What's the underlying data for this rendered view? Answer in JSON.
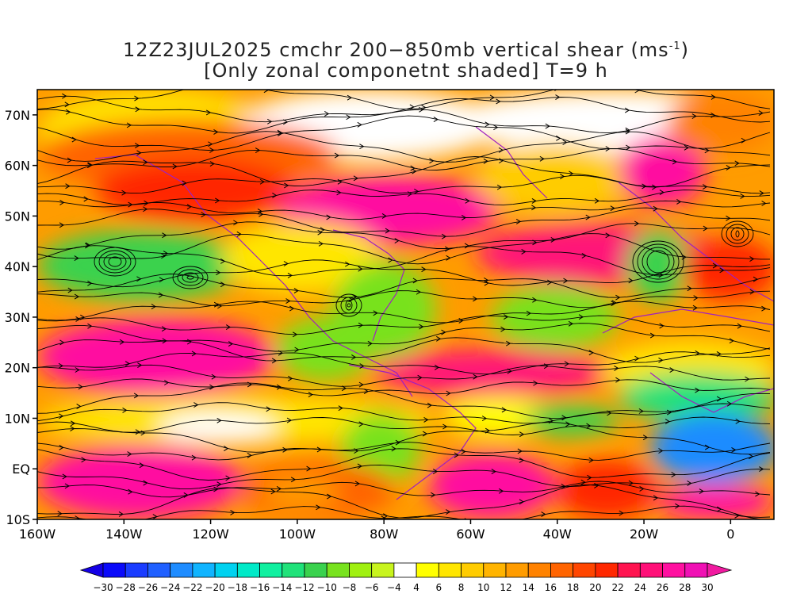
{
  "title": {
    "line1_prefix": "12Z23JUL2025 cmchr 200−850mb vertical shear (ms",
    "line1_sup": "-1",
    "line1_suffix": ")",
    "line2": "[Only zonal componetnt shaded] T=9 h"
  },
  "map": {
    "lat_ticks": [
      "70N",
      "60N",
      "50N",
      "40N",
      "30N",
      "20N",
      "10N",
      "EQ",
      "10S"
    ],
    "lon_ticks": [
      "160W",
      "140W",
      "120W",
      "100W",
      "80W",
      "60W",
      "40W",
      "20W",
      "0"
    ],
    "lon_range": [
      -160,
      10
    ],
    "lat_range": [
      -10,
      75
    ]
  },
  "colorbar": {
    "labels": [
      "−30",
      "−28",
      "−26",
      "−24",
      "−22",
      "−20",
      "−18",
      "−16",
      "−14",
      "−12",
      "−10",
      "−8",
      "−6",
      "−4",
      "4",
      "6",
      "8",
      "10",
      "12",
      "14",
      "16",
      "18",
      "20",
      "22",
      "24",
      "26",
      "28",
      "30"
    ],
    "colors": [
      "#0a0afa",
      "#1a3cff",
      "#2060ff",
      "#1e8cff",
      "#10b4ff",
      "#00d2f0",
      "#00eac8",
      "#10f0a0",
      "#20e27a",
      "#3ad24e",
      "#78e21e",
      "#a0f010",
      "#c8f41e",
      "#ffffff",
      "#ffff00",
      "#ffe600",
      "#ffcc00",
      "#ffb400",
      "#ff9c00",
      "#ff8200",
      "#ff6400",
      "#ff4600",
      "#ff2800",
      "#ff1450",
      "#ff1078",
      "#ff10a0",
      "#f010b4"
    ]
  }
}
